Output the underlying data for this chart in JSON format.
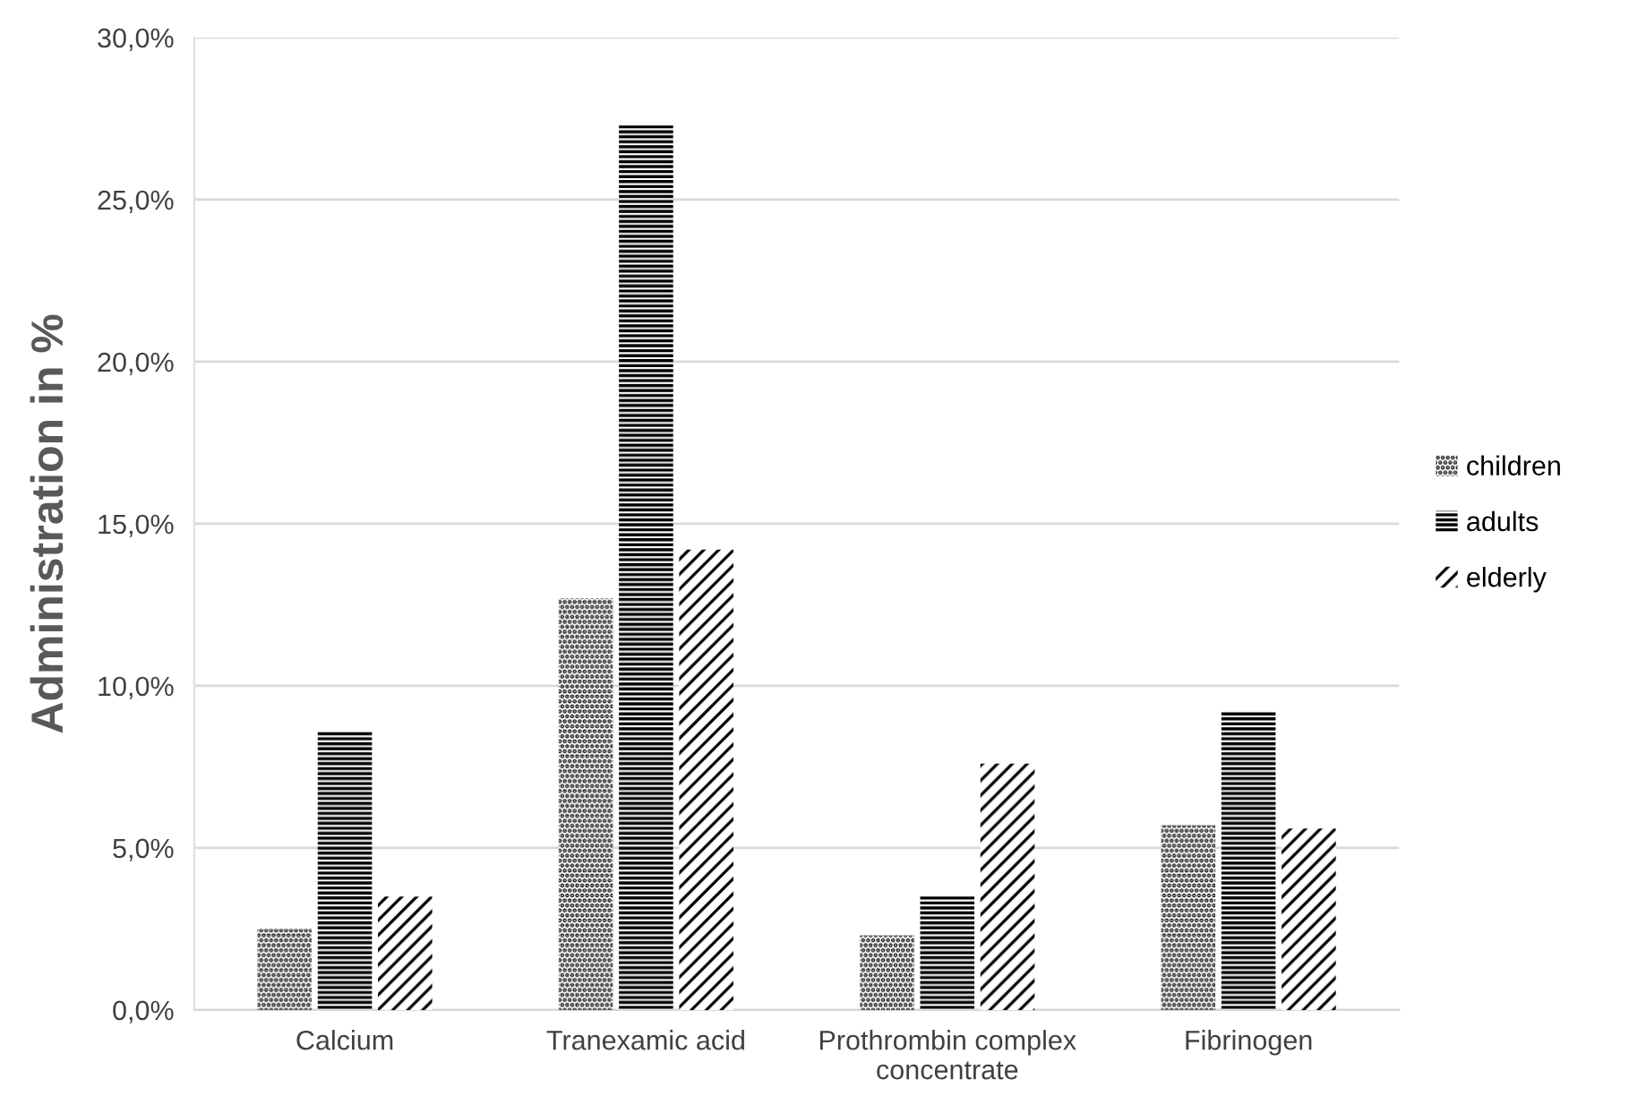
{
  "chart_data": {
    "type": "bar",
    "ylabel": "Administration in %",
    "categories": [
      "Calcium",
      "Tranexamic acid",
      "Prothrombin complex\nconcentrate",
      "Fibrinogen"
    ],
    "series": [
      {
        "name": "children",
        "color": "#000000",
        "values": [
          2.5,
          12.7,
          2.3,
          5.7
        ]
      },
      {
        "name": "adults",
        "color": "#000000",
        "values": [
          8.6,
          27.3,
          3.5,
          9.2
        ]
      },
      {
        "name": "elderly",
        "color": "#000000",
        "values": [
          3.5,
          14.2,
          7.6,
          5.6
        ]
      }
    ],
    "ylim": [
      0,
      30
    ],
    "yticks": [
      {
        "value": 0,
        "label": "0,0%"
      },
      {
        "value": 5,
        "label": "5,0%"
      },
      {
        "value": 10,
        "label": "10,0%"
      },
      {
        "value": 15,
        "label": "15,0%"
      },
      {
        "value": 20,
        "label": "20,0%"
      },
      {
        "value": 25,
        "label": "25,0%"
      },
      {
        "value": 30,
        "label": "30,0%"
      }
    ],
    "grid": "y",
    "legend": "right"
  }
}
